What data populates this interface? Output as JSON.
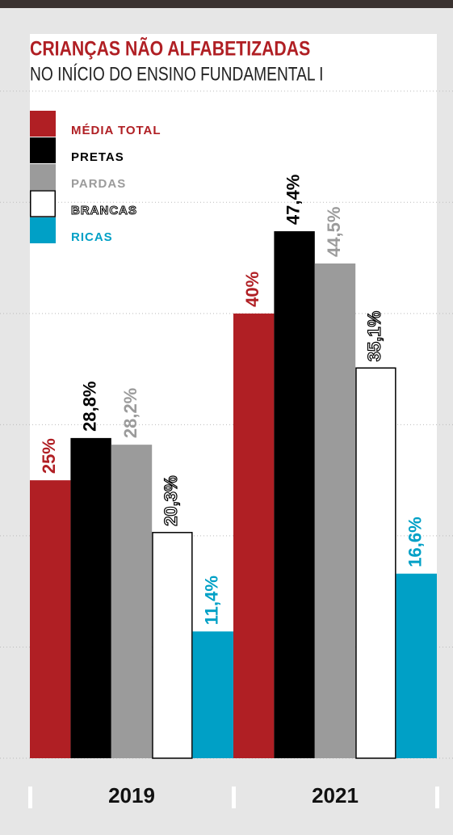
{
  "chart_data": {
    "type": "bar",
    "title": "CRIANÇAS NÃO ALFABETIZADAS",
    "subtitle": "NO INÍCIO DO ENSINO FUNDAMENTAL I",
    "categories": [
      "2019",
      "2021"
    ],
    "series": [
      {
        "name": "MÉDIA TOTAL",
        "color": "#b01f24",
        "values": [
          25,
          40
        ],
        "value_labels": [
          "25%",
          "40%"
        ]
      },
      {
        "name": "PRETAS",
        "color": "#000000",
        "values": [
          28.8,
          47.4
        ],
        "value_labels": [
          "28,8%",
          "47,4%"
        ]
      },
      {
        "name": "PARDAS",
        "color": "#9b9b9b",
        "values": [
          28.2,
          44.5
        ],
        "value_labels": [
          "28,2%",
          "44,5%"
        ]
      },
      {
        "name": "BRANCAS",
        "color": "#ffffff",
        "values": [
          20.3,
          35.1
        ],
        "value_labels": [
          "20,3%",
          "35,1%"
        ]
      },
      {
        "name": "RICAS",
        "color": "#00a0c6",
        "values": [
          11.4,
          16.6
        ],
        "value_labels": [
          "11,4%",
          "16,6%"
        ]
      }
    ],
    "ylim": [
      0,
      65
    ],
    "yticks": [
      0,
      10,
      20,
      30,
      40,
      50,
      60
    ],
    "grid": true,
    "legend": "top-left"
  }
}
